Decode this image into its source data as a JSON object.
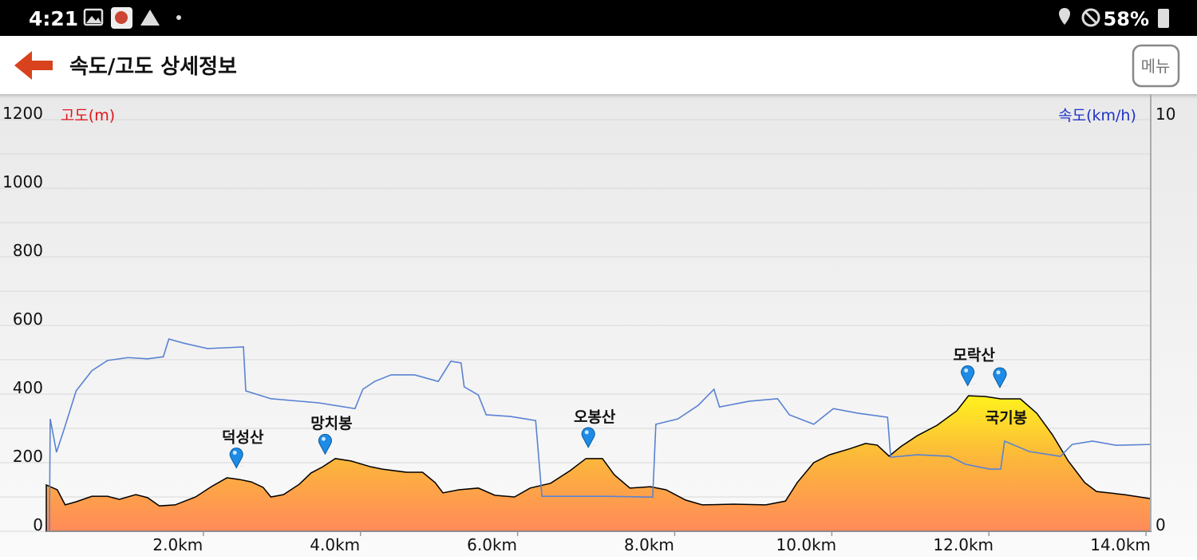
{
  "status_bar": {
    "time": "4:21",
    "battery": "58%"
  },
  "header": {
    "title": "속도/고도 상세정보",
    "menu_button": "메뉴"
  },
  "chart_data": {
    "type": "area",
    "series": [
      {
        "name": "고도(m)",
        "kind": "area",
        "color": "#000000",
        "axis": "y",
        "x": [
          0,
          0.14,
          0.24,
          0.38,
          0.58,
          0.78,
          0.93,
          1.14,
          1.29,
          1.44,
          1.64,
          1.9,
          2.1,
          2.3,
          2.46,
          2.61,
          2.76,
          2.86,
          3.02,
          3.22,
          3.37,
          3.52,
          3.68,
          3.88,
          4.13,
          4.28,
          4.59,
          4.79,
          4.95,
          5.05,
          5.25,
          5.5,
          5.71,
          5.96,
          6.16,
          6.42,
          6.67,
          6.87,
          7.08,
          7.23,
          7.43,
          7.69,
          7.89,
          8.14,
          8.35,
          8.75,
          9.16,
          9.41,
          9.56,
          9.77,
          9.97,
          10.22,
          10.43,
          10.58,
          10.73,
          10.88,
          11.09,
          11.34,
          11.59,
          11.74,
          11.95,
          12.15,
          12.4,
          12.61,
          12.81,
          13.01,
          13.22,
          13.37,
          13.72,
          14.06
        ],
        "values": [
          135,
          121,
          77,
          86,
          102,
          102,
          93,
          107,
          98,
          74,
          77,
          100,
          130,
          156,
          151,
          144,
          128,
          100,
          107,
          137,
          170,
          188,
          212,
          205,
          188,
          181,
          172,
          172,
          142,
          112,
          121,
          126,
          105,
          100,
          126,
          140,
          177,
          212,
          212,
          165,
          126,
          130,
          121,
          91,
          77,
          79,
          77,
          88,
          142,
          200,
          223,
          240,
          256,
          251,
          219,
          247,
          279,
          309,
          351,
          395,
          393,
          386,
          386,
          344,
          281,
          205,
          142,
          116,
          107,
          95
        ]
      },
      {
        "name": "속도(km/h)",
        "kind": "line",
        "color": "#5a82d2",
        "axis": "y2",
        "x": [
          0.04,
          0.05,
          0.13,
          0.22,
          0.38,
          0.58,
          0.78,
          1.04,
          1.29,
          1.49,
          1.56,
          1.75,
          2.05,
          2.3,
          2.51,
          2.54,
          2.86,
          3.47,
          3.93,
          4.03,
          4.18,
          4.39,
          4.69,
          4.99,
          5.15,
          5.28,
          5.32,
          5.5,
          5.6,
          5.91,
          6.23,
          6.31,
          7.13,
          7.72,
          7.76,
          8.04,
          8.3,
          8.5,
          8.57,
          8.95,
          9.31,
          9.46,
          9.77,
          10.02,
          10.33,
          10.71,
          10.75,
          11.09,
          11.5,
          11.7,
          12.01,
          12.15,
          12.2,
          12.51,
          12.91,
          13.06,
          13.32,
          13.62,
          14.06
        ],
        "values": [
          0,
          2.73,
          1.92,
          2.44,
          3.41,
          3.9,
          4.15,
          4.22,
          4.19,
          4.24,
          4.67,
          4.57,
          4.44,
          4.46,
          4.48,
          3.41,
          3.22,
          3.12,
          2.98,
          3.45,
          3.64,
          3.8,
          3.8,
          3.64,
          4.13,
          4.09,
          3.51,
          3.31,
          2.83,
          2.79,
          2.69,
          0.85,
          0.85,
          0.83,
          2.6,
          2.73,
          3.06,
          3.45,
          3.02,
          3.16,
          3.22,
          2.83,
          2.6,
          2.98,
          2.87,
          2.77,
          1.8,
          1.86,
          1.82,
          1.63,
          1.51,
          1.51,
          2.19,
          1.94,
          1.82,
          2.11,
          2.19,
          2.09,
          2.11
        ]
      }
    ],
    "xlim": [
      0,
      14.06
    ],
    "xticks": [
      {
        "value": 2,
        "label": "2.0km"
      },
      {
        "value": 4,
        "label": "4.0km"
      },
      {
        "value": 6,
        "label": "6.0km"
      },
      {
        "value": 8,
        "label": "8.0km"
      },
      {
        "value": 10,
        "label": "10.0km"
      },
      {
        "value": 12,
        "label": "12.0km"
      },
      {
        "value": 14,
        "label": "14.0km"
      }
    ],
    "ylim": [
      0,
      1200
    ],
    "yticks": [
      0,
      200,
      400,
      600,
      800,
      1000,
      1200
    ],
    "grid_lines": [
      0,
      100,
      200,
      300,
      400,
      500,
      600,
      700,
      800,
      900,
      1000,
      1100,
      1200
    ],
    "y2lim": [
      0,
      10
    ],
    "y2ticks": [
      0,
      10
    ],
    "peaks": [
      {
        "label": "덕성산",
        "x": 2.42
      },
      {
        "label": "망치봉",
        "x": 3.55
      },
      {
        "label": "오봉산",
        "x": 6.9
      },
      {
        "label": "모락산",
        "x": 11.73
      },
      {
        "label": "국기봉",
        "x": 12.14,
        "label_position": "below"
      }
    ]
  }
}
